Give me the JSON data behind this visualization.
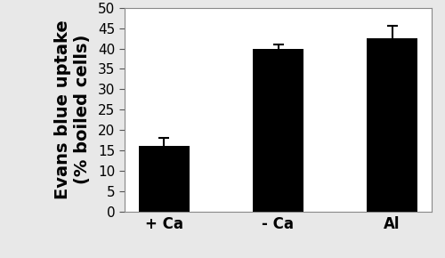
{
  "categories": [
    "+ Ca",
    "- Ca",
    "Al"
  ],
  "values": [
    16.0,
    40.0,
    42.5
  ],
  "errors": [
    2.0,
    1.0,
    3.0
  ],
  "bar_color": "#000000",
  "bar_width": 0.45,
  "ylabel_line1": "Evans blue uptake",
  "ylabel_line2": "(% boiled cells)",
  "ylim": [
    0,
    50
  ],
  "yticks": [
    0,
    5,
    10,
    15,
    20,
    25,
    30,
    35,
    40,
    45,
    50
  ],
  "plot_bg_color": "#ffffff",
  "fig_bg_color": "#e8e8e8",
  "error_capsize": 4,
  "error_color": "#000000",
  "ylabel_fontsize": 14,
  "tick_fontsize": 11,
  "xlabel_fontsize": 12
}
